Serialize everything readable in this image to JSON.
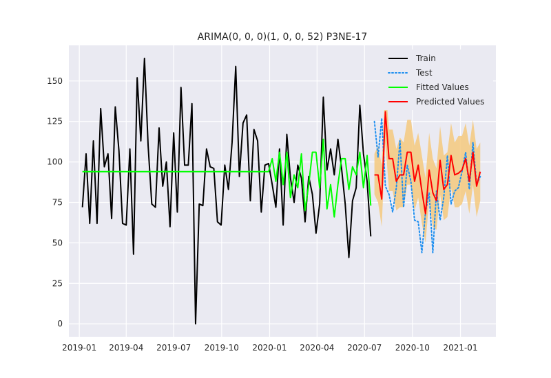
{
  "chart_data": {
    "type": "line",
    "title": "ARIMA(0, 0, 0)(1, 0, 0, 52) P3NE-17",
    "xlabel": "",
    "ylabel": "",
    "x_range": [
      "2018-12-12",
      "2021-03-10"
    ],
    "ylim": [
      -8,
      172
    ],
    "grid": true,
    "legend_placement": "top-right",
    "x_ticks": [
      {
        "date": "2019-01-01",
        "label": "2019-01"
      },
      {
        "date": "2019-04-01",
        "label": "2019-04"
      },
      {
        "date": "2019-07-01",
        "label": "2019-07"
      },
      {
        "date": "2019-10-01",
        "label": "2019-10"
      },
      {
        "date": "2020-01-01",
        "label": "2020-01"
      },
      {
        "date": "2020-04-01",
        "label": "2020-04"
      },
      {
        "date": "2020-07-01",
        "label": "2020-07"
      },
      {
        "date": "2020-10-01",
        "label": "2020-10"
      },
      {
        "date": "2021-01-01",
        "label": "2021-01"
      }
    ],
    "y_ticks": [
      0,
      25,
      50,
      75,
      100,
      125,
      150
    ],
    "series": [
      {
        "name": "Train",
        "color": "#000000",
        "style": "solid",
        "start": "2019-01-07",
        "interval_days": 7,
        "values": [
          72,
          105,
          62,
          113,
          62,
          133,
          97,
          105,
          65,
          134,
          107,
          62,
          61,
          108,
          43,
          152,
          113,
          164,
          110,
          74,
          72,
          121,
          85,
          100,
          60,
          118,
          69,
          146,
          98,
          98,
          136,
          0,
          74,
          73,
          108,
          97,
          96,
          63,
          61,
          98,
          83,
          112,
          159,
          91,
          124,
          129,
          76,
          120,
          113,
          69,
          98,
          99,
          86,
          72,
          108,
          61,
          117,
          90,
          75,
          98,
          90,
          63,
          91,
          80,
          56,
          74,
          140,
          95,
          108,
          92,
          114,
          96,
          74,
          41,
          76,
          84,
          135,
          105,
          88,
          54
        ]
      },
      {
        "name": "Test",
        "color": "#1e8ff0",
        "style": "dotted",
        "start": "2020-07-20",
        "interval_days": 7,
        "values": [
          125,
          103,
          127,
          85,
          80,
          69,
          84,
          113,
          72,
          98,
          88,
          64,
          63,
          44,
          69,
          81,
          44,
          82,
          64,
          78,
          104,
          74,
          82,
          84,
          94,
          106,
          83,
          112,
          86,
          91
        ]
      },
      {
        "name": "Fitted Values",
        "color": "#00ff00",
        "style": "solid",
        "start": "2019-01-07",
        "interval_days": 7,
        "values": [
          94,
          94,
          94,
          94,
          94,
          94,
          94,
          94,
          94,
          94,
          94,
          94,
          94,
          94,
          94,
          94,
          94,
          94,
          94,
          94,
          94,
          94,
          94,
          94,
          94,
          94,
          94,
          94,
          94,
          94,
          94,
          94,
          94,
          94,
          94,
          94,
          94,
          94,
          94,
          94,
          94,
          94,
          94,
          94,
          94,
          94,
          94,
          94,
          94,
          94,
          94,
          94,
          102,
          88,
          106,
          86,
          106,
          78,
          92,
          84,
          105,
          70,
          86,
          106,
          106,
          84,
          114,
          71,
          86,
          66,
          86,
          102,
          102,
          83,
          97,
          92,
          106,
          84,
          104,
          73
        ]
      },
      {
        "name": "Predicted Values",
        "color": "#ff0000",
        "style": "solid",
        "start": "2020-07-20",
        "interval_days": 7,
        "values": [
          92,
          92,
          77,
          131,
          102,
          102,
          88,
          92,
          92,
          106,
          106,
          88,
          98,
          82,
          68,
          95,
          81,
          76,
          101,
          83,
          86,
          104,
          92,
          93,
          95,
          102,
          88,
          106,
          85,
          94
        ]
      }
    ],
    "confidence_band": {
      "color": "#f5c97e",
      "start": "2020-07-20",
      "interval_days": 7,
      "upper": [
        105,
        110,
        98,
        148,
        120,
        120,
        108,
        115,
        112,
        126,
        126,
        110,
        118,
        104,
        90,
        118,
        102,
        96,
        122,
        104,
        106,
        124,
        112,
        116,
        116,
        124,
        110,
        126,
        108,
        112
      ],
      "lower": [
        80,
        75,
        60,
        112,
        82,
        82,
        70,
        72,
        72,
        86,
        86,
        70,
        78,
        62,
        50,
        76,
        60,
        58,
        80,
        64,
        66,
        84,
        72,
        72,
        74,
        82,
        68,
        86,
        66,
        76
      ]
    }
  }
}
